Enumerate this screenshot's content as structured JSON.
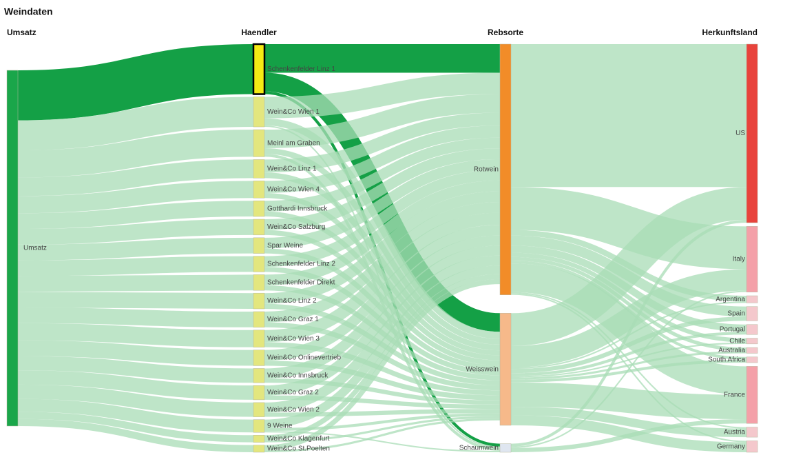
{
  "chart_data": {
    "type": "sankey",
    "title": "Weindaten",
    "columns": [
      {
        "name": "Umsatz",
        "nodes": [
          {
            "name": "Umsatz",
            "color": "#1aa64a"
          }
        ]
      },
      {
        "name": "Haendler",
        "nodes": [
          {
            "name": "Schenkenfelder Linz 1",
            "color": "#f5ea14",
            "highlighted": true
          },
          {
            "name": "Wein&Co Wien 1",
            "color": "#e3e67e"
          },
          {
            "name": "Meinl am Graben",
            "color": "#e3e67e"
          },
          {
            "name": "Wein&Co Linz 1",
            "color": "#e3e67e"
          },
          {
            "name": "Wein&Co Wien 4",
            "color": "#e3e67e"
          },
          {
            "name": "Gotthardi Innsbruck",
            "color": "#e3e67e"
          },
          {
            "name": "Wein&Co Salzburg",
            "color": "#e3e67e"
          },
          {
            "name": "Spar Weine",
            "color": "#e3e67e"
          },
          {
            "name": "Schenkenfelder Linz 2",
            "color": "#e3e67e"
          },
          {
            "name": "Schenkenfelder Direkt",
            "color": "#e3e67e"
          },
          {
            "name": "Wein&Co Linz 2",
            "color": "#e3e67e"
          },
          {
            "name": "Wein&Co Graz 1",
            "color": "#e3e67e"
          },
          {
            "name": "Wein&Co Wien 3",
            "color": "#e3e67e"
          },
          {
            "name": "Wein&Co Onlinevertrieb",
            "color": "#e3e67e"
          },
          {
            "name": "Wein&Co Innsbruck",
            "color": "#e3e67e"
          },
          {
            "name": "Wein&Co Graz 2",
            "color": "#e3e67e"
          },
          {
            "name": "Wein&Co Wien 2",
            "color": "#e3e67e"
          },
          {
            "name": "9 Weine",
            "color": "#e3e67e"
          },
          {
            "name": "Wein&Co Klagenfurt",
            "color": "#e3e67e"
          },
          {
            "name": "Wein&Co St.Poelten",
            "color": "#e3e67e"
          }
        ]
      },
      {
        "name": "Rebsorte",
        "nodes": [
          {
            "name": "Rotwein",
            "color": "#f28c28"
          },
          {
            "name": "Weisswein",
            "color": "#f6b98a"
          },
          {
            "name": "Schaumwein",
            "color": "#dfe6f0"
          }
        ]
      },
      {
        "name": "Herkunftsland",
        "nodes": [
          {
            "name": "US",
            "color": "#e8433c"
          },
          {
            "name": "Italy",
            "color": "#f4a0a8"
          },
          {
            "name": "Argentina",
            "color": "#f4c8cc"
          },
          {
            "name": "Spain",
            "color": "#f4c8cc"
          },
          {
            "name": "Portugal",
            "color": "#f4c8cc"
          },
          {
            "name": "Chile",
            "color": "#f4c8cc"
          },
          {
            "name": "Australia",
            "color": "#f4c8cc"
          },
          {
            "name": "South Africa",
            "color": "#f4c8cc"
          },
          {
            "name": "France",
            "color": "#f4a0a8"
          },
          {
            "name": "Austria",
            "color": "#f4c8cc"
          },
          {
            "name": "Germany",
            "color": "#f4c8cc"
          }
        ]
      }
    ],
    "links": [
      {
        "source": "Umsatz",
        "target": "Schenkenfelder Linz 1",
        "value": 70
      },
      {
        "source": "Umsatz",
        "target": "Wein&Co Wien 1",
        "value": 42
      },
      {
        "source": "Umsatz",
        "target": "Meinl am Graben",
        "value": 38
      },
      {
        "source": "Umsatz",
        "target": "Wein&Co Linz 1",
        "value": 26
      },
      {
        "source": "Umsatz",
        "target": "Wein&Co Wien 4",
        "value": 24
      },
      {
        "source": "Umsatz",
        "target": "Gotthardi Innsbruck",
        "value": 22
      },
      {
        "source": "Umsatz",
        "target": "Wein&Co Salzburg",
        "value": 22
      },
      {
        "source": "Umsatz",
        "target": "Spar Weine",
        "value": 22
      },
      {
        "source": "Umsatz",
        "target": "Schenkenfelder Linz 2",
        "value": 22
      },
      {
        "source": "Umsatz",
        "target": "Schenkenfelder Direkt",
        "value": 22
      },
      {
        "source": "Umsatz",
        "target": "Wein&Co Linz 2",
        "value": 22
      },
      {
        "source": "Umsatz",
        "target": "Wein&Co Graz 1",
        "value": 22
      },
      {
        "source": "Umsatz",
        "target": "Wein&Co Wien 3",
        "value": 24
      },
      {
        "source": "Umsatz",
        "target": "Wein&Co Onlinevertrieb",
        "value": 22
      },
      {
        "source": "Umsatz",
        "target": "Wein&Co Innsbruck",
        "value": 20
      },
      {
        "source": "Umsatz",
        "target": "Wein&Co Graz 2",
        "value": 20
      },
      {
        "source": "Umsatz",
        "target": "Wein&Co Wien 2",
        "value": 20
      },
      {
        "source": "Umsatz",
        "target": "9 Weine",
        "value": 18
      },
      {
        "source": "Umsatz",
        "target": "Wein&Co Klagenfurt",
        "value": 10
      },
      {
        "source": "Umsatz",
        "target": "Wein&Co St.Poelten",
        "value": 10
      },
      {
        "source": "Schenkenfelder Linz 1",
        "target": "Rotwein",
        "value": 40
      },
      {
        "source": "Schenkenfelder Linz 1",
        "target": "Weisswein",
        "value": 26
      },
      {
        "source": "Schenkenfelder Linz 1",
        "target": "Schaumwein",
        "value": 4
      },
      {
        "source": "Wein&Co Wien 1",
        "target": "Rotwein",
        "value": 30
      },
      {
        "source": "Wein&Co Wien 1",
        "target": "Weisswein",
        "value": 10
      },
      {
        "source": "Wein&Co Wien 1",
        "target": "Schaumwein",
        "value": 2
      },
      {
        "source": "Meinl am Graben",
        "target": "Rotwein",
        "value": 26
      },
      {
        "source": "Meinl am Graben",
        "target": "Weisswein",
        "value": 8
      },
      {
        "source": "Meinl am Graben",
        "target": "Schaumwein",
        "value": 4
      },
      {
        "source": "Wein&Co Linz 1",
        "target": "Rotwein",
        "value": 18
      },
      {
        "source": "Wein&Co Linz 1",
        "target": "Weisswein",
        "value": 8
      },
      {
        "source": "Wein&Co Wien 4",
        "target": "Rotwein",
        "value": 17
      },
      {
        "source": "Wein&Co Wien 4",
        "target": "Weisswein",
        "value": 7
      },
      {
        "source": "Gotthardi Innsbruck",
        "target": "Rotwein",
        "value": 15
      },
      {
        "source": "Gotthardi Innsbruck",
        "target": "Weisswein",
        "value": 7
      },
      {
        "source": "Wein&Co Salzburg",
        "target": "Rotwein",
        "value": 15
      },
      {
        "source": "Wein&Co Salzburg",
        "target": "Weisswein",
        "value": 7
      },
      {
        "source": "Spar Weine",
        "target": "Rotwein",
        "value": 15
      },
      {
        "source": "Spar Weine",
        "target": "Weisswein",
        "value": 7
      },
      {
        "source": "Schenkenfelder Linz 2",
        "target": "Rotwein",
        "value": 15
      },
      {
        "source": "Schenkenfelder Linz 2",
        "target": "Weisswein",
        "value": 7
      },
      {
        "source": "Schenkenfelder Direkt",
        "target": "Rotwein",
        "value": 15
      },
      {
        "source": "Schenkenfelder Direkt",
        "target": "Weisswein",
        "value": 7
      },
      {
        "source": "Wein&Co Linz 2",
        "target": "Rotwein",
        "value": 15
      },
      {
        "source": "Wein&Co Linz 2",
        "target": "Weisswein",
        "value": 7
      },
      {
        "source": "Wein&Co Graz 1",
        "target": "Rotwein",
        "value": 15
      },
      {
        "source": "Wein&Co Graz 1",
        "target": "Weisswein",
        "value": 7
      },
      {
        "source": "Wein&Co Wien 3",
        "target": "Rotwein",
        "value": 17
      },
      {
        "source": "Wein&Co Wien 3",
        "target": "Weisswein",
        "value": 7
      },
      {
        "source": "Wein&Co Onlinevertrieb",
        "target": "Rotwein",
        "value": 15
      },
      {
        "source": "Wein&Co Onlinevertrieb",
        "target": "Weisswein",
        "value": 7
      },
      {
        "source": "Wein&Co Innsbruck",
        "target": "Rotwein",
        "value": 14
      },
      {
        "source": "Wein&Co Innsbruck",
        "target": "Weisswein",
        "value": 6
      },
      {
        "source": "Wein&Co Graz 2",
        "target": "Rotwein",
        "value": 14
      },
      {
        "source": "Wein&Co Graz 2",
        "target": "Weisswein",
        "value": 6
      },
      {
        "source": "Wein&Co Wien 2",
        "target": "Rotwein",
        "value": 14
      },
      {
        "source": "Wein&Co Wien 2",
        "target": "Weisswein",
        "value": 6
      },
      {
        "source": "9 Weine",
        "target": "Rotwein",
        "value": 12
      },
      {
        "source": "9 Weine",
        "target": "Weisswein",
        "value": 4
      },
      {
        "source": "9 Weine",
        "target": "Schaumwein",
        "value": 2
      },
      {
        "source": "Wein&Co Klagenfurt",
        "target": "Rotwein",
        "value": 7
      },
      {
        "source": "Wein&Co Klagenfurt",
        "target": "Weisswein",
        "value": 3
      },
      {
        "source": "Wein&Co St.Poelten",
        "target": "Rotwein",
        "value": 7
      },
      {
        "source": "Wein&Co St.Poelten",
        "target": "Weisswein",
        "value": 3
      },
      {
        "source": "Rotwein",
        "target": "US",
        "value": 200
      },
      {
        "source": "Rotwein",
        "target": "Italy",
        "value": 60
      },
      {
        "source": "Rotwein",
        "target": "Argentina",
        "value": 8
      },
      {
        "source": "Rotwein",
        "target": "Spain",
        "value": 14
      },
      {
        "source": "Rotwein",
        "target": "Portugal",
        "value": 10
      },
      {
        "source": "Rotwein",
        "target": "Chile",
        "value": 6
      },
      {
        "source": "Rotwein",
        "target": "Australia",
        "value": 5
      },
      {
        "source": "Rotwein",
        "target": "South Africa",
        "value": 4
      },
      {
        "source": "Rotwein",
        "target": "France",
        "value": 40
      },
      {
        "source": "Rotwein",
        "target": "Austria",
        "value": 2
      },
      {
        "source": "Rotwein",
        "target": "Germany",
        "value": 2
      },
      {
        "source": "Weisswein",
        "target": "US",
        "value": 46
      },
      {
        "source": "Weisswein",
        "target": "Italy",
        "value": 30
      },
      {
        "source": "Weisswein",
        "target": "Argentina",
        "value": 2
      },
      {
        "source": "Weisswein",
        "target": "Spain",
        "value": 6
      },
      {
        "source": "Weisswein",
        "target": "Portugal",
        "value": 4
      },
      {
        "source": "Weisswein",
        "target": "Chile",
        "value": 2
      },
      {
        "source": "Weisswein",
        "target": "Australia",
        "value": 3
      },
      {
        "source": "Weisswein",
        "target": "South Africa",
        "value": 4
      },
      {
        "source": "Weisswein",
        "target": "France",
        "value": 34
      },
      {
        "source": "Weisswein",
        "target": "Austria",
        "value": 12
      },
      {
        "source": "Weisswein",
        "target": "Germany",
        "value": 14
      },
      {
        "source": "Schaumwein",
        "target": "US",
        "value": 4
      },
      {
        "source": "Schaumwein",
        "target": "Italy",
        "value": 2
      },
      {
        "source": "Schaumwein",
        "target": "France",
        "value": 6
      }
    ],
    "link_color": "#a8dcb6",
    "highlight_color": "#14a046"
  }
}
